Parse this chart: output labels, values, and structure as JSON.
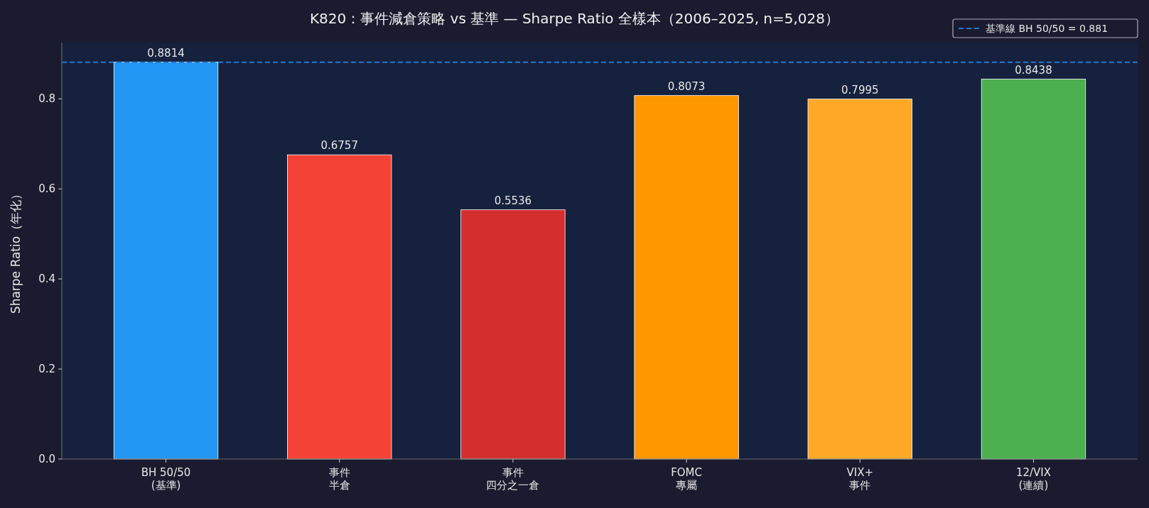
{
  "chart_data": {
    "type": "bar",
    "title": "K820：事件減倉策略 vs 基準 — Sharpe Ratio 全樣本（2006–2025, n=5,028）",
    "ylabel": "Sharpe Ratio（年化）",
    "categories": [
      "BH 50/50 (基準)",
      "事件半倉",
      "事件四分之一倉",
      "FOMC 專屬",
      "VIX+ 事件",
      "12/VIX (連續)"
    ],
    "values": [
      0.8814,
      0.6757,
      0.5536,
      0.8073,
      0.7995,
      0.8438
    ],
    "colors": [
      "#2196f3",
      "#f44336",
      "#d32f2f",
      "#ff9800",
      "#ffa726",
      "#4caf50"
    ],
    "ylim": [
      0,
      0.925
    ],
    "yticks": [
      {
        "value": 0,
        "label": "0.0"
      },
      0.2,
      0.4,
      0.6,
      0.8
    ],
    "ref_lines": [
      {
        "axis": "y",
        "value": 0.8814,
        "label": "基準線 BH 50/50 = 0.881",
        "color": "#1e78d2",
        "line_style": "dashed"
      }
    ],
    "data_labels": true,
    "legend": "top right"
  }
}
